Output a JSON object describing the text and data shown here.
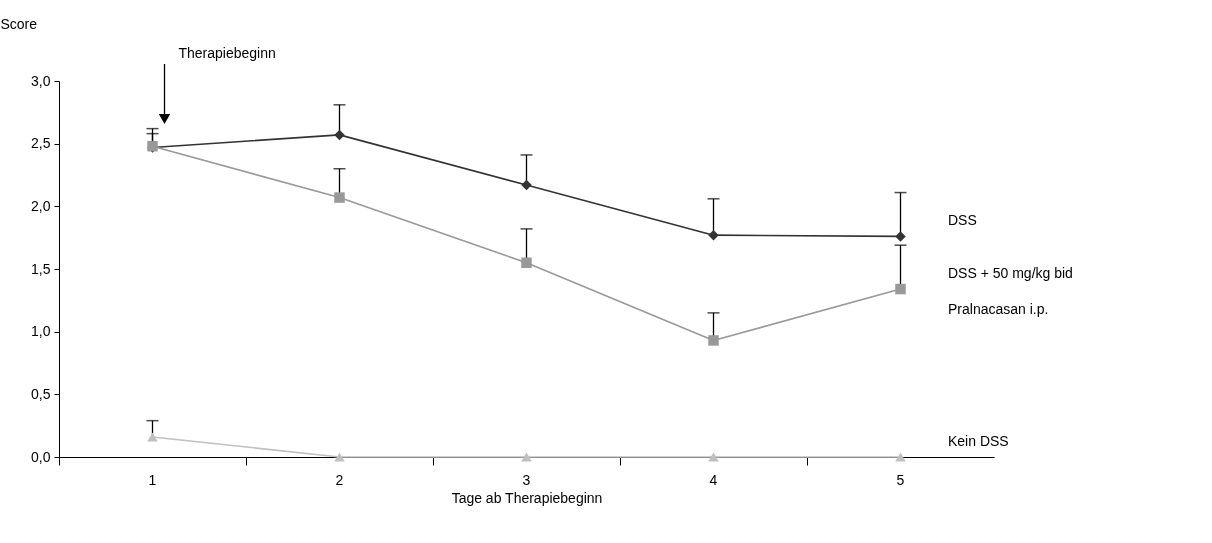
{
  "chart_data": {
    "type": "line",
    "xlabel": "Tage ab Therapiebeginn",
    "ylabel": "Score",
    "categories": [
      "1",
      "2",
      "3",
      "4",
      "5"
    ],
    "ylim": [
      0,
      3
    ],
    "yticks": [
      {
        "value": 0,
        "label": "0,0"
      },
      {
        "value": 0.5,
        "label": "0,5"
      },
      {
        "value": 1,
        "label": "1,0"
      },
      {
        "value": 1.5,
        "label": "1,5"
      },
      {
        "value": 2,
        "label": "2,0"
      },
      {
        "value": 2.5,
        "label": "2,5"
      },
      {
        "value": 3,
        "label": "3,0"
      }
    ],
    "series": [
      {
        "name": "DSS",
        "color": "#333333",
        "marker": "diamond",
        "values": [
          2.47,
          2.57,
          2.17,
          1.77,
          1.76
        ],
        "errors": [
          [
            2.47,
            2.62
          ],
          [
            2.57,
            2.81
          ],
          [
            2.17,
            2.41
          ],
          [
            1.77,
            2.06
          ],
          [
            1.76,
            2.11
          ]
        ]
      },
      {
        "name": "DSS + 50 mg/kg bid Pralnacasan i.p.",
        "color": "#999999",
        "marker": "square",
        "values": [
          2.48,
          2.07,
          1.55,
          0.93,
          1.34
        ],
        "errors": [
          [
            2.48,
            2.58
          ],
          [
            2.07,
            2.3
          ],
          [
            1.55,
            1.82
          ],
          [
            0.93,
            1.15
          ],
          [
            1.34,
            1.69
          ]
        ]
      },
      {
        "name": "Kein DSS",
        "color": "#c0c0c0",
        "marker": "triangle",
        "values": [
          0.16,
          0,
          0,
          0,
          0
        ],
        "errors": [
          [
            0.16,
            0.29
          ],
          null,
          null,
          null,
          null
        ]
      }
    ],
    "annotations": [
      "Therapiebeginn"
    ],
    "grid": false,
    "legend": false,
    "line_style": "solid"
  }
}
